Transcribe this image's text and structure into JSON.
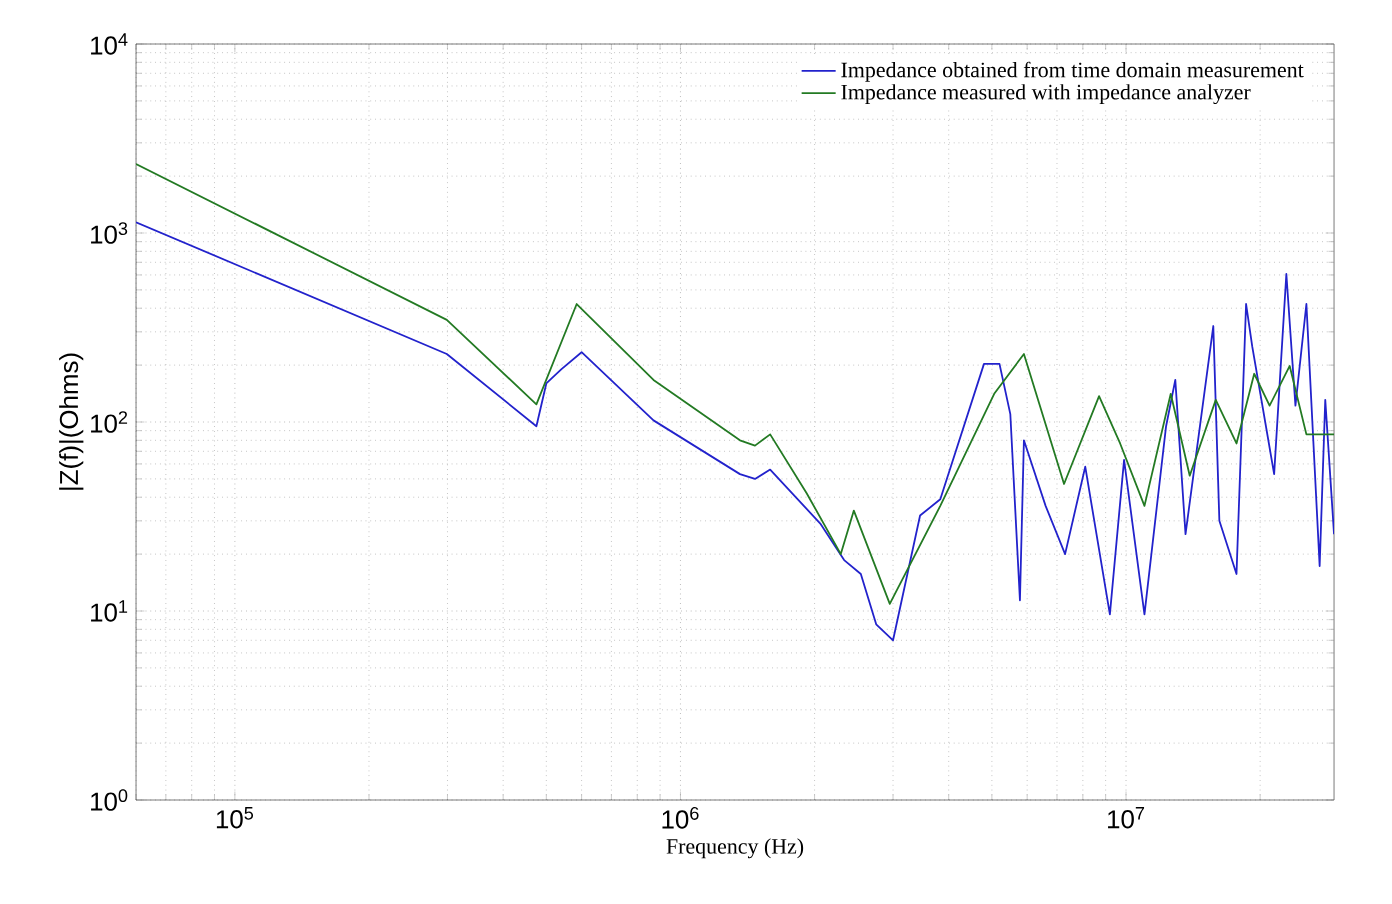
{
  "chart_data": {
    "type": "line",
    "xlabel": "Frequency (Hz)",
    "ylabel": "|Z(f)|(Ohms)",
    "log": "xy",
    "grid": true,
    "legend": "top right",
    "line_style": "solid",
    "marker": "none",
    "xlim": [
      60000,
      29300000
    ],
    "ylim": [
      1,
      10000
    ],
    "xticks": [
      {
        "value": 100000,
        "label": "10$^{5}$"
      },
      {
        "value": 1000000,
        "label": "10$^{6}$"
      },
      {
        "value": 10000000,
        "label": "10$^{7}$"
      }
    ],
    "yticks": [
      {
        "value": 1,
        "label": "10$^{0}$"
      },
      {
        "value": 10,
        "label": "10$^{1}$"
      },
      {
        "value": 100,
        "label": "10$^{2}$"
      },
      {
        "value": 1000,
        "label": "10$^{3}$"
      },
      {
        "value": 10000,
        "label": "10$^{4}$"
      }
    ],
    "series": [
      {
        "name": "Impedance obtained from time domain measurement",
        "color": "#2222cc",
        "x": [
          60000,
          299000,
          475000,
          500000,
          540000,
          600000,
          870000,
          1360000,
          1470000,
          1590000,
          2060000,
          2330000,
          2540000,
          2750000,
          3000000,
          3450000,
          3830000,
          4800000,
          5200000,
          5500000,
          5780000,
          5900000,
          6600000,
          7300000,
          8100000,
          9200000,
          9900000,
          11000000,
          12300000,
          12900000,
          13600000,
          15700000,
          16200000,
          17700000,
          18600000,
          19200000,
          21500000,
          22900000,
          24000000,
          25400000,
          27200000,
          28000000,
          29300000
        ],
        "values": [
          1140,
          229,
          95,
          160,
          190,
          234,
          102,
          53,
          50,
          56,
          29,
          18.6,
          15.7,
          8.5,
          7.0,
          32,
          39,
          203,
          203,
          110,
          11.4,
          80,
          36,
          20,
          58,
          9.6,
          63,
          9.6,
          95,
          167,
          25.5,
          322,
          30,
          15.7,
          421,
          251,
          53,
          607,
          122,
          421,
          17.3,
          131,
          25.5
        ]
      },
      {
        "name": "Impedance measured with impedance analyzer",
        "color": "#237a23",
        "x": [
          60000,
          299000,
          475000,
          585000,
          870000,
          1360000,
          1470000,
          1590000,
          1920000,
          2290000,
          2450000,
          2950000,
          3830000,
          5060000,
          5900000,
          7260000,
          8700000,
          9700000,
          11000000,
          12600000,
          13900000,
          15900000,
          17700000,
          19400000,
          21000000,
          23300000,
          25400000,
          29300000
        ],
        "values": [
          2320,
          347,
          124,
          421,
          167,
          80,
          75,
          86,
          42,
          20,
          34,
          10.9,
          36,
          141,
          229,
          47,
          137,
          77,
          36,
          141,
          52,
          131,
          77,
          180,
          122,
          198,
          86,
          86
        ]
      }
    ]
  }
}
